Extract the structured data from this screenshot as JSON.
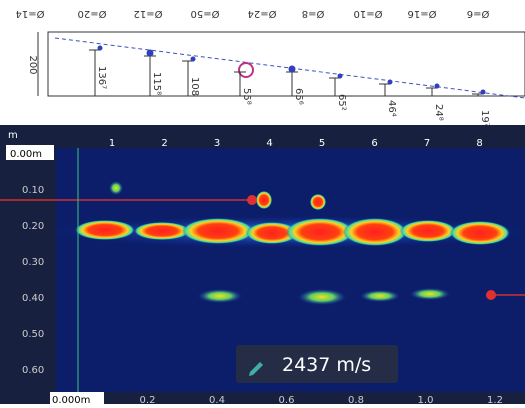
{
  "diagram": {
    "diameters": [
      "Ø=14",
      "Ø=20",
      "Ø=12",
      "Ø=50",
      "Ø=24",
      "Ø=8",
      "Ø=10",
      "Ø=16",
      "Ø=6"
    ],
    "height_label": "200",
    "depths": [
      "136⁷",
      "115⁸",
      "108",
      "55⁸",
      "65⁶",
      "65²",
      "46⁴",
      "24⁸",
      "19⁷"
    ]
  },
  "scan": {
    "depth_unit": "m",
    "depth_labels": [
      "0.00m",
      "0.10",
      "0.20",
      "0.30",
      "0.40",
      "0.50",
      "0.60"
    ],
    "markers": [
      "1",
      "2",
      "3",
      "4",
      "5",
      "6",
      "7",
      "8"
    ],
    "distance_labels": [
      "0.000m",
      "0.2",
      "0.4",
      "0.6",
      "0.8",
      "1.0",
      "1.2"
    ],
    "velocity": "2437 m/s"
  }
}
